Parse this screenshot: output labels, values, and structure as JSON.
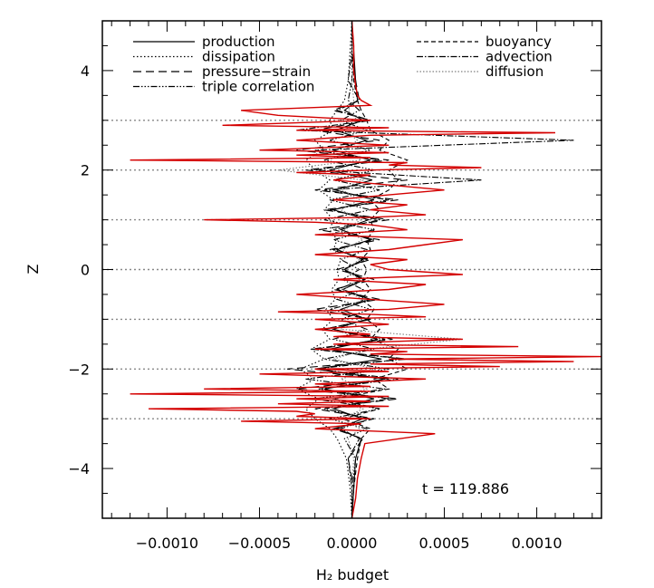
{
  "chart_data": {
    "type": "line",
    "title": "",
    "xlabel": "H₂ budget",
    "ylabel": "Z",
    "annotation": "t = 119.886",
    "xlim": [
      -0.00135,
      0.00135
    ],
    "ylim": [
      -5,
      5
    ],
    "x_ticks": [
      -0.001,
      -0.0005,
      0.0,
      0.0005,
      0.001
    ],
    "x_tick_labels": [
      "−0.0010",
      "−0.0005",
      "0.0000",
      "0.0005",
      "0.0010"
    ],
    "y_ticks": [
      -4,
      -2,
      0,
      2,
      4
    ],
    "y_tick_labels": [
      "−4",
      "−2",
      "0",
      "2",
      "4"
    ],
    "hlines_dotted": [
      -3,
      -2,
      -1,
      0,
      1,
      2,
      3
    ],
    "legend_placement": "top",
    "series": [
      {
        "name": "production",
        "color": "#000000",
        "dash": "",
        "y": [
          -5,
          -4.4,
          -3.8,
          -3.4,
          -3.2,
          -3.0,
          -2.8,
          -2.6,
          -2.4,
          -2.2,
          -2.0,
          -1.8,
          -1.6,
          -1.4,
          -1.2,
          -1.0,
          -0.8,
          -0.6,
          -0.4,
          -0.2,
          0.0,
          0.2,
          0.4,
          0.6,
          0.8,
          1.0,
          1.2,
          1.4,
          1.6,
          1.8,
          2.0,
          2.2,
          2.4,
          2.6,
          2.8,
          3.0,
          3.2,
          3.4,
          3.8,
          4.4,
          5
        ],
        "x": [
          0,
          1e-05,
          2e-05,
          5e-05,
          -8e-05,
          6e-05,
          -0.0001,
          0.00012,
          -0.00015,
          0.00018,
          -0.0002,
          0.00016,
          -0.00012,
          0.00014,
          -0.0001,
          8e-05,
          -6e-05,
          0.0001,
          -5e-05,
          7e-05,
          -4e-05,
          6e-05,
          -8e-05,
          0.0001,
          -6e-05,
          9e-05,
          -0.0001,
          0.00012,
          -9e-05,
          0.00011,
          -0.00012,
          0.0001,
          -0.0001,
          8e-05,
          -9e-05,
          6e-05,
          -4e-05,
          3e-05,
          2e-05,
          1e-05,
          0
        ]
      },
      {
        "name": "dissipation",
        "color": "#000000",
        "dash": "1.5,2.5",
        "y": [
          -5,
          -4.4,
          -3.8,
          -3.4,
          -3.2,
          -3.0,
          -2.8,
          -2.6,
          -2.4,
          -2.2,
          -2.0,
          -1.8,
          -1.6,
          -1.4,
          -1.2,
          -1.0,
          -0.8,
          -0.6,
          -0.4,
          -0.2,
          0.0,
          0.2,
          0.4,
          0.6,
          0.8,
          1.0,
          1.2,
          1.4,
          1.6,
          1.8,
          2.0,
          2.2,
          2.4,
          2.6,
          2.8,
          3.0,
          3.2,
          3.4,
          3.8,
          4.4,
          5
        ],
        "x": [
          0,
          -1e-05,
          -3e-05,
          -8e-05,
          -0.00012,
          -0.0002,
          -0.00025,
          -0.00018,
          -0.0003,
          -0.0002,
          -0.00028,
          -0.00015,
          -0.00022,
          -0.00012,
          -0.00016,
          -0.0001,
          -0.00014,
          -9e-05,
          -0.00011,
          -7e-05,
          -8e-05,
          -6e-05,
          -0.0001,
          -8e-05,
          -0.00012,
          -0.0001,
          -0.00015,
          -0.0001,
          -0.00018,
          -0.00012,
          -0.0002,
          -0.00025,
          -0.00015,
          -0.0002,
          -0.0001,
          -0.00012,
          -8e-05,
          -4e-05,
          -2e-05,
          -1e-05,
          0
        ]
      },
      {
        "name": "pressure−strain",
        "color": "#000000",
        "dash": "9,5",
        "y": [
          -5,
          -4.4,
          -3.8,
          -3.4,
          -3.2,
          -3.0,
          -2.8,
          -2.6,
          -2.4,
          -2.2,
          -2.0,
          -1.8,
          -1.6,
          -1.4,
          -1.2,
          -1.0,
          -0.8,
          -0.6,
          -0.4,
          -0.2,
          0.0,
          0.2,
          0.4,
          0.6,
          0.8,
          1.0,
          1.2,
          1.4,
          1.6,
          1.8,
          2.0,
          2.2,
          2.4,
          2.6,
          2.8,
          3.0,
          3.2,
          3.4,
          3.8,
          4.4,
          5
        ],
        "x": [
          0,
          1e-05,
          -2e-05,
          6e-05,
          -0.0001,
          0.00012,
          -0.0002,
          0.00025,
          -0.0003,
          0.0002,
          -0.00035,
          0.0003,
          -0.0002,
          0.00022,
          -0.00015,
          0.0001,
          -0.0002,
          0.00015,
          -0.0001,
          0.00012,
          -8e-05,
          0.0001,
          -0.00012,
          0.00015,
          -0.00018,
          0.0002,
          -0.00015,
          0.00025,
          -0.0002,
          0.0003,
          -0.00025,
          0.0002,
          -0.0003,
          0.00015,
          -0.0002,
          0.0001,
          -0.0001,
          4e-05,
          2e-05,
          0,
          0
        ]
      },
      {
        "name": "triple correlation",
        "color": "#000000",
        "dash": "7,2,1.5,2,1.5,2,1.5,2",
        "y": [
          -5,
          -4.4,
          -3.8,
          -3.4,
          -3.2,
          -3.0,
          -2.8,
          -2.6,
          -2.4,
          -2.2,
          -2.0,
          -1.8,
          -1.6,
          -1.4,
          -1.2,
          -1.0,
          -0.8,
          -0.6,
          -0.4,
          -0.2,
          0.0,
          0.2,
          0.4,
          0.6,
          0.8,
          1.0,
          1.2,
          1.4,
          1.6,
          1.8,
          2.0,
          2.2,
          2.4,
          2.6,
          2.8,
          3.0,
          3.2,
          3.4,
          3.8,
          4.4,
          5
        ],
        "x": [
          0,
          0,
          2e-05,
          -4e-05,
          8e-05,
          -0.00012,
          0.00015,
          -0.0002,
          0.00018,
          -0.00025,
          0.0002,
          -0.00015,
          0.00012,
          -0.0001,
          8e-05,
          -6e-05,
          0.0001,
          -8e-05,
          6e-05,
          -5e-05,
          4e-05,
          -6e-05,
          8e-05,
          -0.0001,
          0.00012,
          -0.00015,
          0.0001,
          -0.00012,
          0.00015,
          -0.0001,
          0.00012,
          -0.00015,
          0.0001,
          -0.00012,
          8e-05,
          -6e-05,
          4e-05,
          -2e-05,
          0,
          0,
          0
        ]
      },
      {
        "name": "buoyancy",
        "color": "#000000",
        "dash": "5,3",
        "y": [
          -5,
          -4.4,
          -3.8,
          -3.4,
          -3.2,
          -3.0,
          -2.8,
          -2.6,
          -2.4,
          -2.2,
          -2.0,
          -1.8,
          -1.6,
          -1.4,
          -1.2,
          -1.0,
          -0.8,
          -0.6,
          -0.4,
          -0.2,
          0.0,
          0.2,
          0.4,
          0.6,
          0.8,
          1.0,
          1.2,
          1.4,
          1.6,
          1.8,
          2.0,
          2.2,
          2.4,
          2.6,
          2.8,
          3.0,
          3.2,
          3.4,
          3.8,
          4.4,
          5
        ],
        "x": [
          0,
          1e-05,
          3e-05,
          5e-05,
          0.0001,
          -5e-05,
          0.00015,
          -0.0001,
          0.0002,
          0.00012,
          0.0003,
          0.0002,
          0.00025,
          0.0001,
          0.00015,
          8e-05,
          0.00012,
          5e-05,
          0.0001,
          6e-05,
          8e-05,
          5e-05,
          0.0001,
          8e-05,
          0.00012,
          0.0001,
          0.00015,
          0.0001,
          0.0002,
          0.00025,
          0.0002,
          0.0003,
          0.00015,
          0.0002,
          0.0001,
          8e-05,
          5e-05,
          3e-05,
          1e-05,
          0,
          0
        ]
      },
      {
        "name": "advection",
        "color": "#000000",
        "dash": "7,2,1.5,2",
        "y": [
          -5,
          -4.4,
          -3.8,
          -3.4,
          -3.2,
          -3.0,
          -2.8,
          -2.6,
          -2.4,
          -2.2,
          -2.0,
          -1.8,
          -1.6,
          -1.4,
          -1.2,
          -1.0,
          -0.8,
          -0.6,
          -0.4,
          -0.2,
          0.0,
          0.2,
          0.4,
          0.6,
          0.8,
          1.0,
          1.2,
          1.4,
          1.6,
          1.8,
          2.0,
          2.2,
          2.4,
          2.6,
          2.8,
          3.0,
          3.2,
          3.4,
          3.8,
          4.4,
          5
        ],
        "x": [
          0,
          0,
          -2e-05,
          4e-05,
          -6e-05,
          0.0001,
          -0.00015,
          0.0002,
          -0.00018,
          0.00025,
          -0.0002,
          0.00028,
          -0.00022,
          0.00018,
          -0.00015,
          0.0001,
          -0.00012,
          0.0001,
          -8e-05,
          6e-05,
          -5e-05,
          8e-05,
          -0.0001,
          0.00012,
          -0.0001,
          0.00015,
          -0.00012,
          0.0002,
          -0.00015,
          0.0007,
          -0.0002,
          0.00015,
          -0.0002,
          0.0012,
          -0.0003,
          0.0001,
          -8e-05,
          4e-05,
          -2e-05,
          0,
          0
        ]
      },
      {
        "name": "diffusion",
        "color": "#7f7f7f",
        "dash": "1.5,2",
        "y": [
          -5,
          -4.4,
          -3.8,
          -3.4,
          -3.2,
          -3.0,
          -2.8,
          -2.6,
          -2.4,
          -2.2,
          -2.0,
          -1.8,
          -1.6,
          -1.4,
          -1.2,
          -1.0,
          -0.8,
          -0.6,
          -0.4,
          -0.2,
          0.0,
          0.2,
          0.4,
          0.6,
          0.8,
          1.0,
          1.2,
          1.4,
          1.6,
          1.8,
          2.0,
          2.2,
          2.4,
          2.6,
          2.8,
          3.0,
          3.2,
          3.4,
          3.8,
          4.4,
          5
        ],
        "x": [
          0,
          0,
          1e-05,
          -2e-05,
          4e-05,
          -5e-05,
          6e-05,
          -0.0001,
          8e-05,
          -6e-05,
          0.00012,
          -0.0001,
          8e-05,
          0.0006,
          -6e-05,
          5e-05,
          -4e-05,
          6e-05,
          -5e-05,
          4e-05,
          -3e-05,
          4e-05,
          -5e-05,
          6e-05,
          -4e-05,
          5e-05,
          -6e-05,
          4e-05,
          -5e-05,
          6e-05,
          -0.0004,
          5e-05,
          -4e-05,
          3e-05,
          -4e-05,
          3e-05,
          -2e-05,
          1e-05,
          0,
          0,
          0
        ]
      },
      {
        "name": "",
        "color": "#d40000",
        "dash": "",
        "y": [
          -5,
          -4.6,
          -4.2,
          -3.8,
          -3.5,
          -3.3,
          -3.2,
          -3.1,
          -3.05,
          -3.0,
          -2.95,
          -2.9,
          -2.85,
          -2.8,
          -2.75,
          -2.7,
          -2.65,
          -2.6,
          -2.55,
          -2.5,
          -2.45,
          -2.4,
          -2.35,
          -2.3,
          -2.2,
          -2.1,
          -2.05,
          -2.0,
          -1.95,
          -1.9,
          -1.85,
          -1.8,
          -1.75,
          -1.7,
          -1.65,
          -1.6,
          -1.55,
          -1.5,
          -1.45,
          -1.4,
          -1.35,
          -1.3,
          -1.2,
          -1.1,
          -1.0,
          -0.95,
          -0.9,
          -0.85,
          -0.8,
          -0.7,
          -0.6,
          -0.5,
          -0.4,
          -0.3,
          -0.2,
          -0.1,
          0.0,
          0.1,
          0.2,
          0.3,
          0.4,
          0.5,
          0.6,
          0.7,
          0.8,
          0.9,
          0.95,
          1.0,
          1.05,
          1.1,
          1.2,
          1.3,
          1.4,
          1.5,
          1.6,
          1.7,
          1.8,
          1.9,
          1.95,
          2.0,
          2.05,
          2.1,
          2.15,
          2.2,
          2.25,
          2.3,
          2.35,
          2.4,
          2.5,
          2.6,
          2.7,
          2.75,
          2.8,
          2.85,
          2.9,
          3.0,
          3.1,
          3.2,
          3.3,
          3.4,
          3.5,
          3.7,
          4.0,
          4.5,
          5
        ],
        "x": [
          0,
          2e-05,
          3e-05,
          5e-05,
          7e-05,
          0.00045,
          -0.0002,
          5e-05,
          -0.0006,
          0.0001,
          -0.0003,
          -0.0002,
          -0.0003,
          -0.0011,
          0.0002,
          -0.0004,
          0.0001,
          -0.0003,
          0.0002,
          -0.0012,
          0.0001,
          -0.0008,
          0.0001,
          -0.0002,
          0.0004,
          -0.0005,
          0.0002,
          -0.0002,
          0.0008,
          0.0001,
          0.0012,
          0.0002,
          0.00135,
          0.0001,
          0.0003,
          -0.0002,
          0.0009,
          -0.0001,
          0.0002,
          0.0006,
          -0.0001,
          0.0001,
          -0.0002,
          0.0002,
          -0.0002,
          0.0004,
          0.0001,
          -0.0004,
          0.0002,
          0.0005,
          0.0001,
          -0.0003,
          0.0002,
          0.0004,
          -0.0001,
          0.0006,
          0.0002,
          0.0001,
          0.0003,
          -0.0002,
          0.0002,
          0.0004,
          0.0006,
          -0.0002,
          0.0003,
          0.0001,
          -0.0002,
          -0.0008,
          0.0001,
          0.0004,
          0.0001,
          0.0003,
          -0.0001,
          0.0002,
          0.0005,
          0.0002,
          -0.0001,
          0.0001,
          -0.0003,
          0.0001,
          0.0007,
          0.0002,
          0.0003,
          -0.0012,
          0.0001,
          -0.0003,
          0.0002,
          -0.0005,
          0.0002,
          -0.0003,
          0.0001,
          0.0011,
          -0.0003,
          0.0002,
          -0.0007,
          0.0001,
          -0.0004,
          -0.0006,
          0.0001,
          5e-05,
          3e-05,
          2e-05,
          1e-05,
          1e-05,
          0
        ]
      }
    ]
  }
}
